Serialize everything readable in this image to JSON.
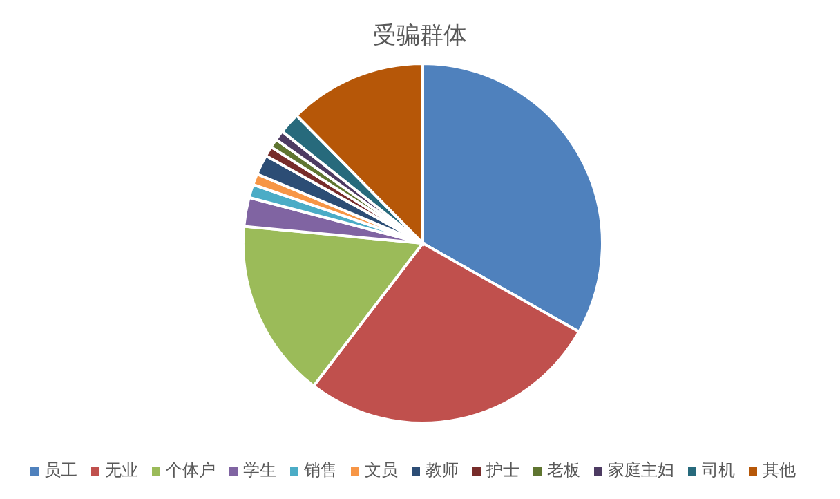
{
  "chart_data": {
    "type": "pie",
    "title": "受骗群体",
    "categories": [
      "员工",
      "无业",
      "个体户",
      "学生",
      "销售",
      "文员",
      "教师",
      "护士",
      "老板",
      "家庭主妇",
      "司机",
      "其他"
    ],
    "values": [
      33.2,
      27.2,
      16.1,
      2.6,
      1.2,
      1.0,
      1.8,
      0.9,
      0.8,
      0.9,
      1.9,
      12.4
    ],
    "colors": [
      "#4f81bd",
      "#c0504d",
      "#9bbb59",
      "#8064a2",
      "#4bacc6",
      "#f79646",
      "#2c4d75",
      "#772c2a",
      "#5f7530",
      "#4d3b62",
      "#276a7c",
      "#b65708"
    ],
    "legend": "bottom"
  }
}
